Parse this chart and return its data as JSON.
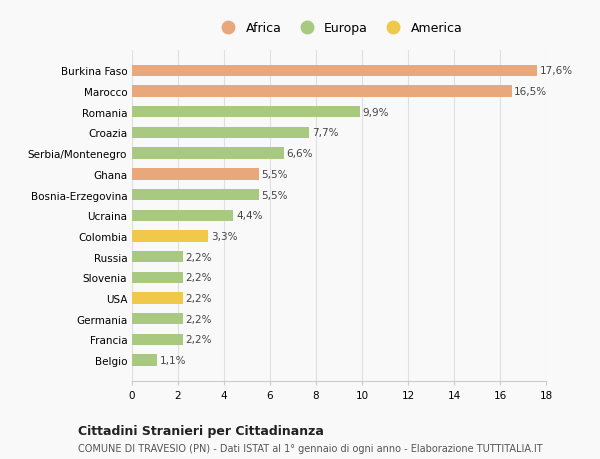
{
  "categories": [
    "Belgio",
    "Francia",
    "Germania",
    "USA",
    "Slovenia",
    "Russia",
    "Colombia",
    "Ucraina",
    "Bosnia-Erzegovina",
    "Ghana",
    "Serbia/Montenegro",
    "Croazia",
    "Romania",
    "Marocco",
    "Burkina Faso"
  ],
  "values": [
    1.1,
    2.2,
    2.2,
    2.2,
    2.2,
    2.2,
    3.3,
    4.4,
    5.5,
    5.5,
    6.6,
    7.7,
    9.9,
    16.5,
    17.6
  ],
  "labels": [
    "1,1%",
    "2,2%",
    "2,2%",
    "2,2%",
    "2,2%",
    "2,2%",
    "3,3%",
    "4,4%",
    "5,5%",
    "5,5%",
    "6,6%",
    "7,7%",
    "9,9%",
    "16,5%",
    "17,6%"
  ],
  "colors": [
    "#a8c97f",
    "#a8c97f",
    "#a8c97f",
    "#f0c84a",
    "#a8c97f",
    "#a8c97f",
    "#f0c84a",
    "#a8c97f",
    "#a8c97f",
    "#e8a87c",
    "#a8c97f",
    "#a8c97f",
    "#a8c97f",
    "#e8a87c",
    "#e8a87c"
  ],
  "legend": [
    {
      "label": "Africa",
      "color": "#e8a87c"
    },
    {
      "label": "Europa",
      "color": "#a8c97f"
    },
    {
      "label": "America",
      "color": "#f0c84a"
    }
  ],
  "xlim": [
    0,
    18
  ],
  "xticks": [
    0,
    2,
    4,
    6,
    8,
    10,
    12,
    14,
    16,
    18
  ],
  "title1": "Cittadini Stranieri per Cittadinanza",
  "title2": "COMUNE DI TRAVESIO (PN) - Dati ISTAT al 1° gennaio di ogni anno - Elaborazione TUTTITALIA.IT",
  "background_color": "#f9f9f9",
  "grid_color": "#e0e0e0"
}
